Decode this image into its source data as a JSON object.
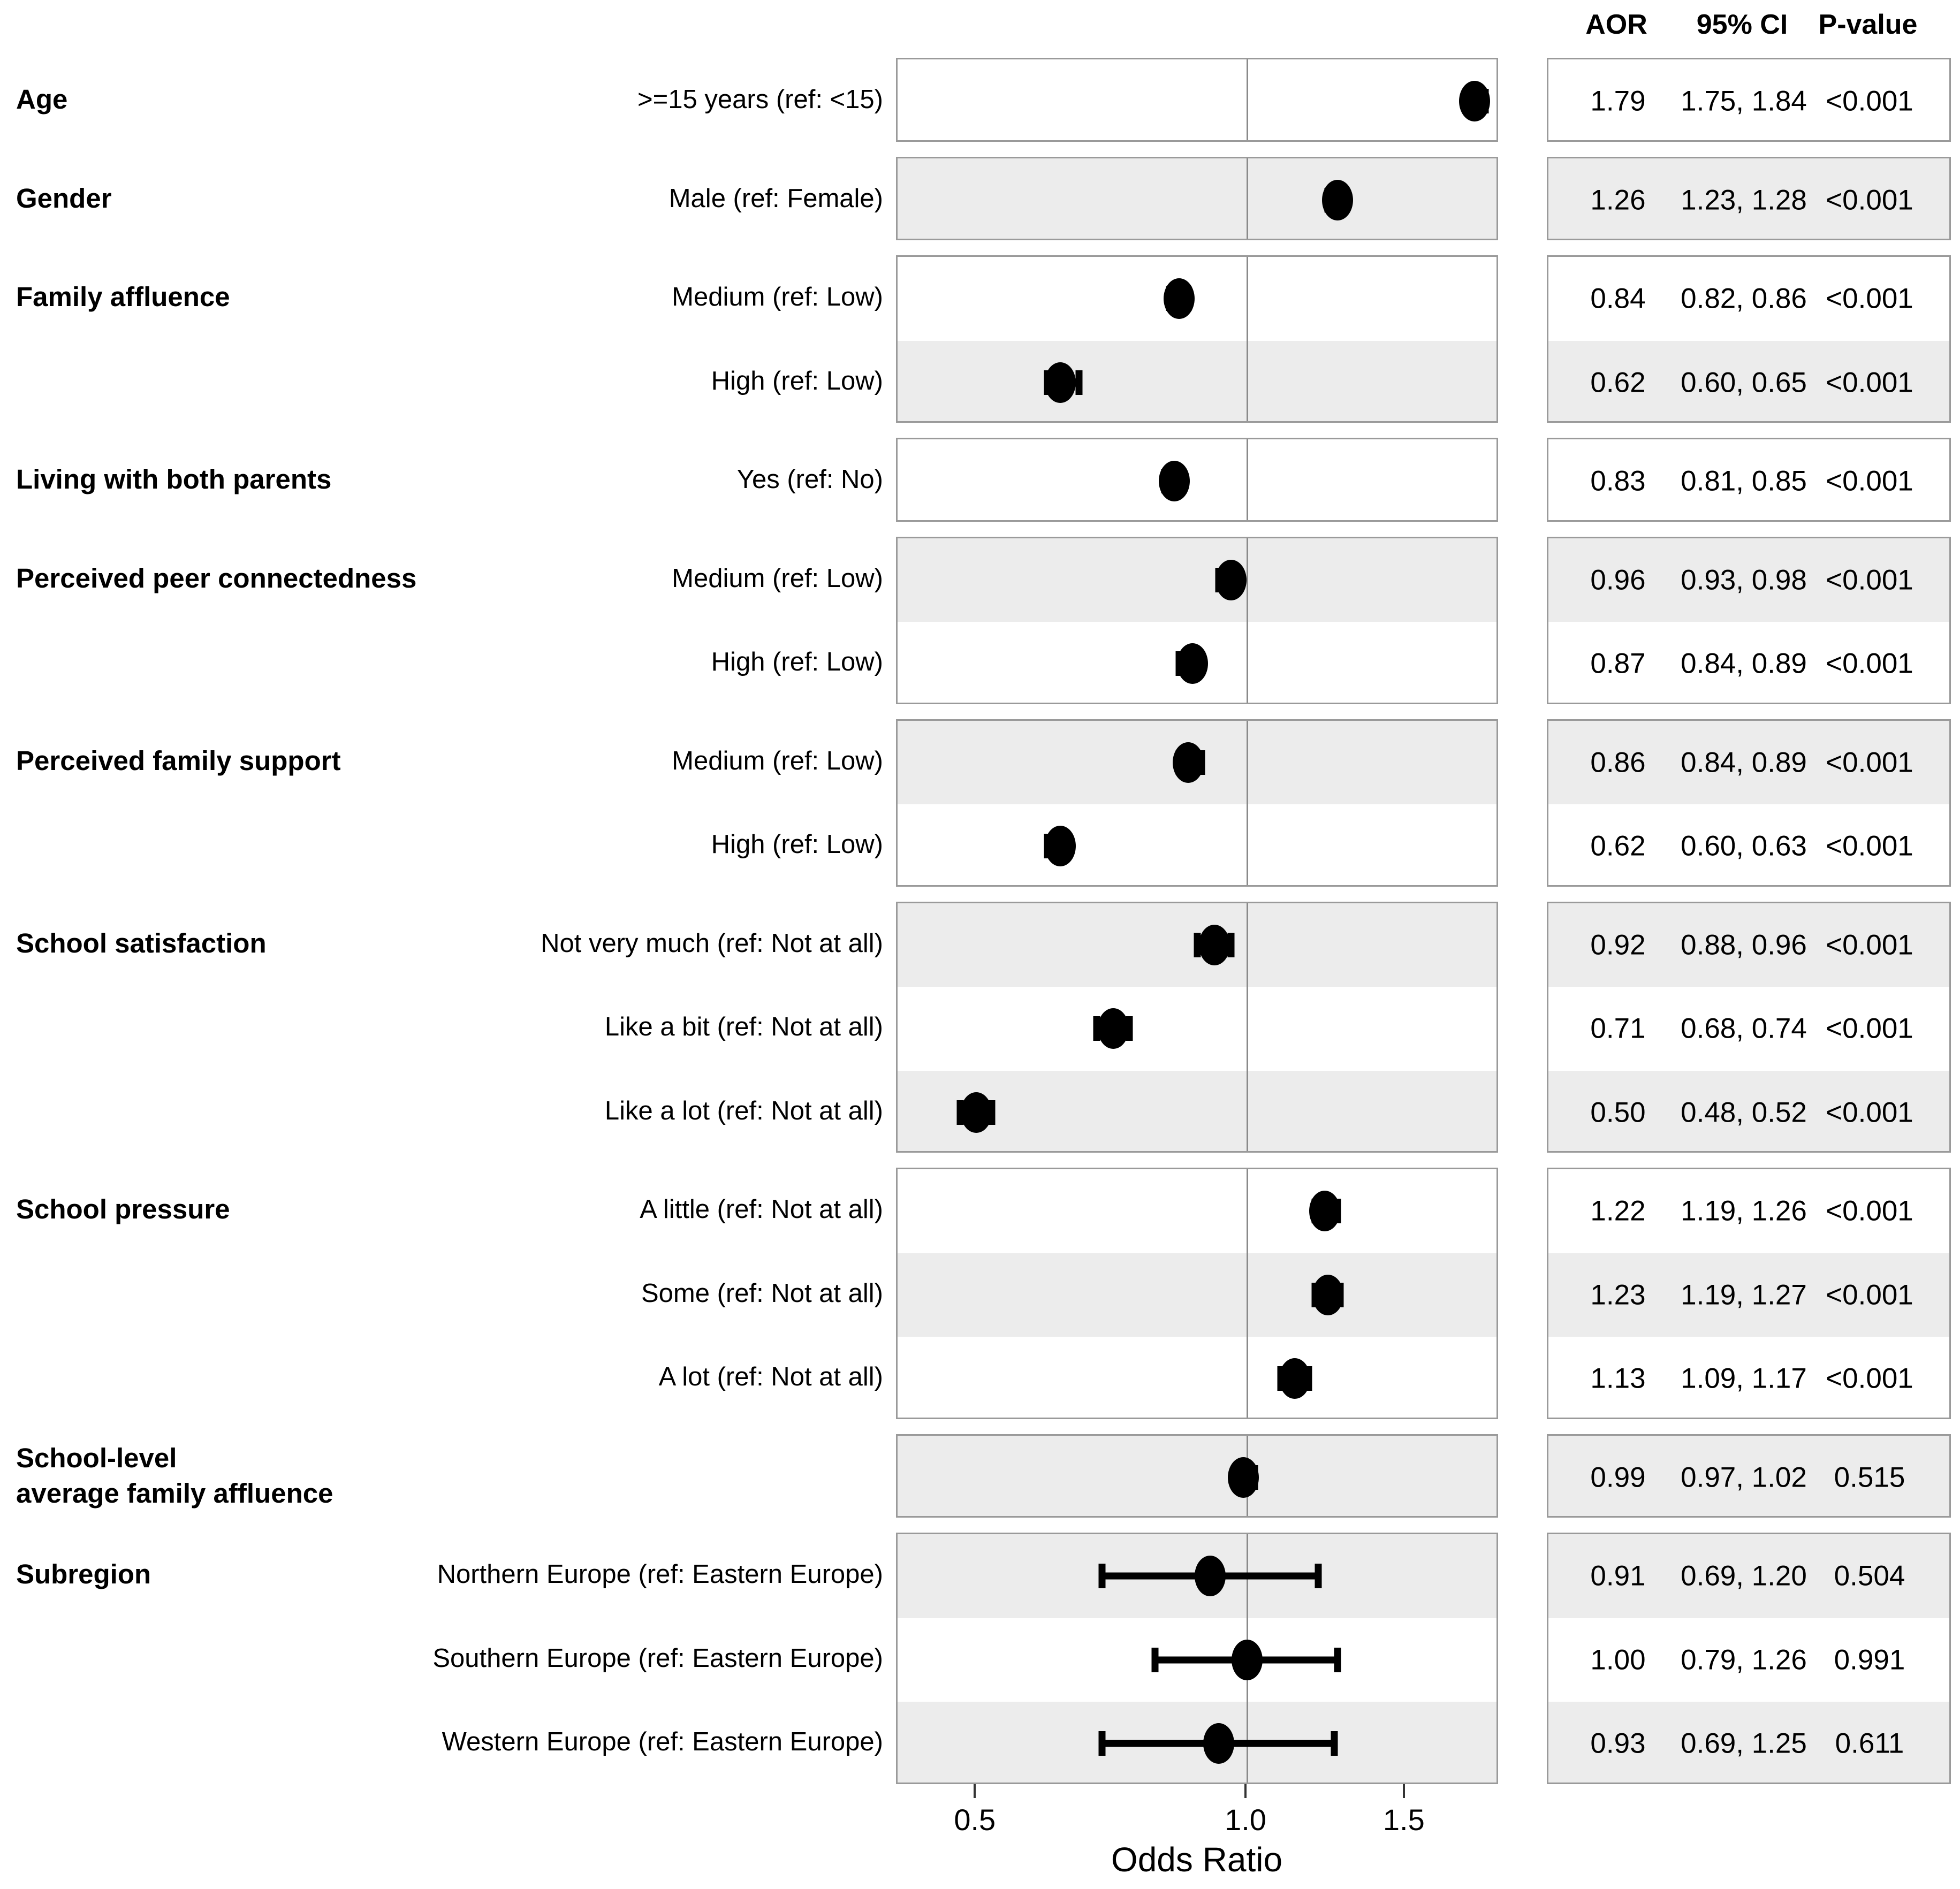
{
  "figure": {
    "table_header": {
      "aor": "AOR",
      "ci": "95% CI",
      "p": "P-value"
    },
    "x_axis": {
      "label": "Odds Ratio",
      "tick_labels": [
        "0.5",
        "1.0",
        "1.5"
      ],
      "tick_values": [
        0.5,
        1.0,
        1.5
      ],
      "reference_line": 1.0,
      "scale": "log"
    },
    "colors": {
      "shaded_row": "#ececec",
      "plain_row": "#ffffff",
      "panel_border": "#9a9a9a",
      "reference_line": "#8a8a8a",
      "marker": "#000000"
    }
  },
  "chart_data": {
    "type": "scatter",
    "subtype": "forest-plot",
    "xlabel": "Odds Ratio",
    "x_ticks": [
      0.5,
      1.0,
      1.5
    ],
    "x_range_approx": [
      0.41,
      1.9
    ],
    "reference_line": 1.0,
    "legend": "none",
    "groups": [
      {
        "category": "Age",
        "rows": [
          {
            "label": ">=15 years (ref: <15)",
            "aor": 1.79,
            "ci_low": 1.75,
            "ci_high": 1.84,
            "aor_text": "1.79",
            "ci_text": "1.75, 1.84",
            "p_text": "<0.001",
            "shaded": false
          }
        ]
      },
      {
        "category": "Gender",
        "rows": [
          {
            "label": "Male (ref: Female)",
            "aor": 1.26,
            "ci_low": 1.23,
            "ci_high": 1.28,
            "aor_text": "1.26",
            "ci_text": "1.23, 1.28",
            "p_text": "<0.001",
            "shaded": true
          }
        ]
      },
      {
        "category": "Family affluence",
        "rows": [
          {
            "label": "Medium (ref: Low)",
            "aor": 0.84,
            "ci_low": 0.82,
            "ci_high": 0.86,
            "aor_text": "0.84",
            "ci_text": "0.82, 0.86",
            "p_text": "<0.001",
            "shaded": false
          },
          {
            "label": "High (ref: Low)",
            "aor": 0.62,
            "ci_low": 0.6,
            "ci_high": 0.65,
            "aor_text": "0.62",
            "ci_text": "0.60, 0.65",
            "p_text": "<0.001",
            "shaded": true
          }
        ]
      },
      {
        "category": "Living with both parents",
        "rows": [
          {
            "label": "Yes (ref: No)",
            "aor": 0.83,
            "ci_low": 0.81,
            "ci_high": 0.85,
            "aor_text": "0.83",
            "ci_text": "0.81, 0.85",
            "p_text": "<0.001",
            "shaded": false
          }
        ]
      },
      {
        "category": "Perceived peer connectedness",
        "rows": [
          {
            "label": "Medium (ref: Low)",
            "aor": 0.96,
            "ci_low": 0.93,
            "ci_high": 0.98,
            "aor_text": "0.96",
            "ci_text": "0.93, 0.98",
            "p_text": "<0.001",
            "shaded": true
          },
          {
            "label": "High (ref: Low)",
            "aor": 0.87,
            "ci_low": 0.84,
            "ci_high": 0.89,
            "aor_text": "0.87",
            "ci_text": "0.84, 0.89",
            "p_text": "<0.001",
            "shaded": false
          }
        ]
      },
      {
        "category": "Perceived family support",
        "rows": [
          {
            "label": "Medium (ref: Low)",
            "aor": 0.86,
            "ci_low": 0.84,
            "ci_high": 0.89,
            "aor_text": "0.86",
            "ci_text": "0.84, 0.89",
            "p_text": "<0.001",
            "shaded": true
          },
          {
            "label": "High (ref: Low)",
            "aor": 0.62,
            "ci_low": 0.6,
            "ci_high": 0.63,
            "aor_text": "0.62",
            "ci_text": "0.60, 0.63",
            "p_text": "<0.001",
            "shaded": false
          }
        ]
      },
      {
        "category": "School satisfaction",
        "rows": [
          {
            "label": "Not very much (ref: Not at all)",
            "aor": 0.92,
            "ci_low": 0.88,
            "ci_high": 0.96,
            "aor_text": "0.92",
            "ci_text": "0.88, 0.96",
            "p_text": "<0.001",
            "shaded": true
          },
          {
            "label": "Like a bit (ref: Not at all)",
            "aor": 0.71,
            "ci_low": 0.68,
            "ci_high": 0.74,
            "aor_text": "0.71",
            "ci_text": "0.68, 0.74",
            "p_text": "<0.001",
            "shaded": false
          },
          {
            "label": "Like a lot (ref: Not at all)",
            "aor": 0.5,
            "ci_low": 0.48,
            "ci_high": 0.52,
            "aor_text": "0.50",
            "ci_text": "0.48, 0.52",
            "p_text": "<0.001",
            "shaded": true
          }
        ]
      },
      {
        "category": "School pressure",
        "rows": [
          {
            "label": "A little (ref: Not at all)",
            "aor": 1.22,
            "ci_low": 1.19,
            "ci_high": 1.26,
            "aor_text": "1.22",
            "ci_text": "1.19, 1.26",
            "p_text": "<0.001",
            "shaded": false
          },
          {
            "label": "Some (ref: Not at all)",
            "aor": 1.23,
            "ci_low": 1.19,
            "ci_high": 1.27,
            "aor_text": "1.23",
            "ci_text": "1.19, 1.27",
            "p_text": "<0.001",
            "shaded": true
          },
          {
            "label": "A lot (ref: Not at all)",
            "aor": 1.13,
            "ci_low": 1.09,
            "ci_high": 1.17,
            "aor_text": "1.13",
            "ci_text": "1.09, 1.17",
            "p_text": "<0.001",
            "shaded": false
          }
        ]
      },
      {
        "category": "School-level\naverage family affluence",
        "rows": [
          {
            "label": "",
            "aor": 0.99,
            "ci_low": 0.97,
            "ci_high": 1.02,
            "aor_text": "0.99",
            "ci_text": "0.97, 1.02",
            "p_text": "0.515",
            "shaded": true
          }
        ]
      },
      {
        "category": "Subregion",
        "rows": [
          {
            "label": "Northern Europe (ref: Eastern Europe)",
            "aor": 0.91,
            "ci_low": 0.69,
            "ci_high": 1.2,
            "aor_text": "0.91",
            "ci_text": "0.69, 1.20",
            "p_text": "0.504",
            "shaded": true
          },
          {
            "label": "Southern Europe (ref: Eastern Europe)",
            "aor": 1.0,
            "ci_low": 0.79,
            "ci_high": 1.26,
            "aor_text": "1.00",
            "ci_text": "0.79, 1.26",
            "p_text": "0.991",
            "shaded": false
          },
          {
            "label": "Western Europe (ref: Eastern Europe)",
            "aor": 0.93,
            "ci_low": 0.69,
            "ci_high": 1.25,
            "aor_text": "0.93",
            "ci_text": "0.69, 1.25",
            "p_text": "0.611",
            "shaded": true
          }
        ]
      }
    ]
  }
}
